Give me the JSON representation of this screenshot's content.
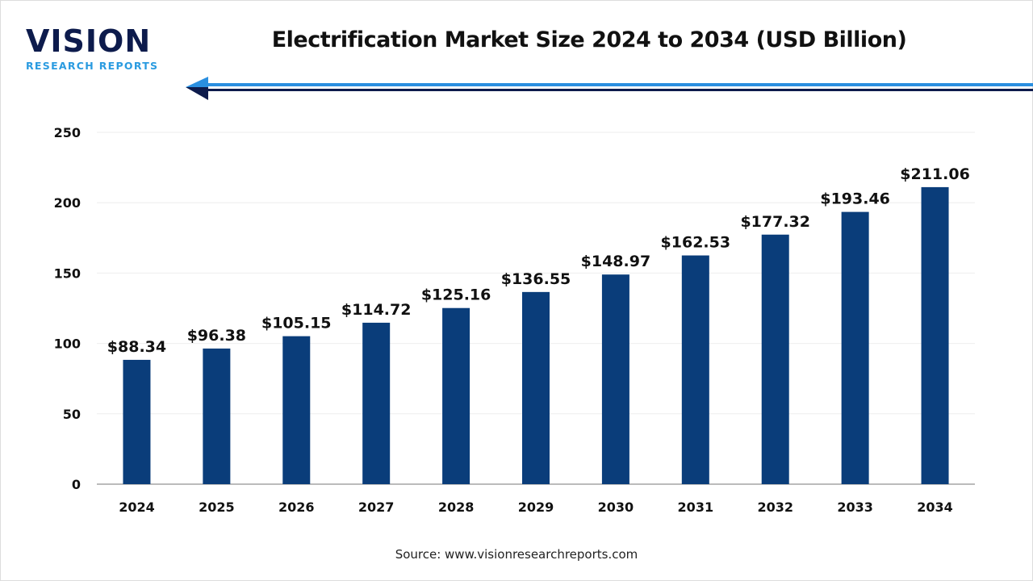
{
  "logo": {
    "main": "VISION",
    "sub": "RESEARCH REPORTS"
  },
  "source": "Source: www.visionresearchreports.com",
  "colors": {
    "bar": "#0a3d7a",
    "arrow_light": "#2a8fe0",
    "arrow_dark": "#0d1b4c",
    "grid": "#eeeeee",
    "axis": "#bbbbbb"
  },
  "chart_data": {
    "type": "bar",
    "title": "Electrification Market Size 2024 to 2034 (USD Billion)",
    "categories": [
      "2024",
      "2025",
      "2026",
      "2027",
      "2028",
      "2029",
      "2030",
      "2031",
      "2032",
      "2033",
      "2034"
    ],
    "values": [
      88.34,
      96.38,
      105.15,
      114.72,
      125.16,
      136.55,
      148.97,
      162.53,
      177.32,
      193.46,
      211.06
    ],
    "data_labels": [
      "$88.34",
      "$96.38",
      "$105.15",
      "$114.72",
      "$125.16",
      "$136.55",
      "$148.97",
      "$162.53",
      "$177.32",
      "$193.46",
      "$211.06"
    ],
    "yticks": [
      0,
      50,
      100,
      150,
      200,
      250
    ],
    "ylim": [
      0,
      250
    ],
    "xlabel": "",
    "ylabel": "",
    "grid": true,
    "legend": "none"
  }
}
